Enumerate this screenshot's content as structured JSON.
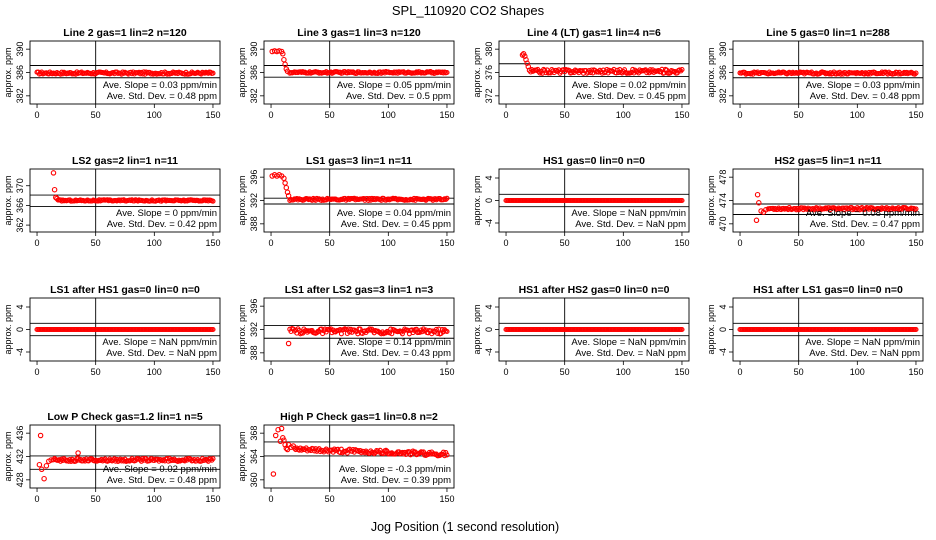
{
  "figure": {
    "title": "SPL_110920  CO2 Shapes",
    "xlabel": "Jog Position (1 second resolution)"
  },
  "colors": {
    "points": "#ff0000",
    "axes": "#000000",
    "background": "#ffffff"
  },
  "chart_data": [
    {
      "type": "scatter",
      "title": "Line 2 gas=1 lin=2 n=120",
      "ylabel": "approx. ppm",
      "yticks": [
        382,
        386,
        390
      ],
      "ylim": [
        380.6,
        391.4
      ],
      "xticks": [
        0,
        50,
        100,
        150
      ],
      "xlim": [
        -6,
        156
      ],
      "hlines": [
        387.2,
        385.1
      ],
      "slope": "Ave. Slope = 0.03 ppm/min",
      "stddev": "Ave. Std. Dev. = 0.48 ppm",
      "series": [
        {
          "segments": [
            {
              "x0": 0,
              "x1": 150,
              "y": 385.9,
              "jit": 0.2
            }
          ]
        }
      ]
    },
    {
      "type": "scatter",
      "title": "Line 3 gas=1 lin=3 n=120",
      "ylabel": "approx. ppm",
      "yticks": [
        382,
        386,
        390
      ],
      "ylim": [
        380.6,
        391.4
      ],
      "xticks": [
        0,
        50,
        100,
        150
      ],
      "xlim": [
        -6,
        156
      ],
      "hlines": [
        387.2,
        385.2
      ],
      "slope": "Ave. Slope = 0.05 ppm/min",
      "stddev": "Ave. Std. Dev. = 0.5 ppm",
      "series": [
        {
          "points": [
            [
              1,
              389.6
            ],
            [
              3,
              389.7
            ],
            [
              5,
              389.6
            ],
            [
              7,
              389.7
            ],
            [
              9,
              389.6
            ],
            [
              10,
              389.2
            ],
            [
              11,
              388.2
            ],
            [
              12,
              387.4
            ],
            [
              13,
              386.6
            ],
            [
              14,
              386.2
            ]
          ],
          "segments": [
            {
              "x0": 16,
              "x1": 150,
              "y": 386.0,
              "jit": 0.15
            }
          ]
        }
      ]
    },
    {
      "type": "scatter",
      "title": "Line 4 (LT) gas=1 lin=4 n=6",
      "ylabel": "approx. ppm",
      "yticks": [
        372,
        376,
        380
      ],
      "ylim": [
        370.6,
        381.4
      ],
      "xticks": [
        0,
        50,
        100,
        150
      ],
      "xlim": [
        -6,
        156
      ],
      "hlines": [
        377.5,
        375.3
      ],
      "slope": "Ave. Slope = 0.02 ppm/min",
      "stddev": "Ave. Std. Dev. = 0.45 ppm",
      "series": [
        {
          "points": [
            [
              14,
              379.0
            ],
            [
              15,
              379.2
            ],
            [
              16,
              378.8
            ],
            [
              17,
              378.2
            ],
            [
              18,
              377.6
            ],
            [
              19,
              377.0
            ],
            [
              20,
              376.4
            ]
          ],
          "segments": [
            {
              "x0": 21,
              "x1": 150,
              "y": 376.2,
              "jit": 0.35
            }
          ]
        }
      ]
    },
    {
      "type": "scatter",
      "title": "Line 5 gas=0 lin=1 n=288",
      "ylabel": "approx. ppm",
      "yticks": [
        382,
        386,
        390
      ],
      "ylim": [
        380.6,
        391.4
      ],
      "xticks": [
        0,
        50,
        100,
        150
      ],
      "xlim": [
        -6,
        156
      ],
      "hlines": [
        387.2,
        385.1
      ],
      "slope": "Ave. Slope = 0.03 ppm/min",
      "stddev": "Ave. Std. Dev. = 0.48 ppm",
      "series": [
        {
          "segments": [
            {
              "x0": 0,
              "x1": 150,
              "y": 385.9,
              "jit": 0.2
            }
          ]
        }
      ]
    },
    {
      "type": "scatter",
      "title": "LS2 gas=2 lin=1 n=11",
      "ylabel": "approx. ppm",
      "yticks": [
        362,
        366,
        370
      ],
      "ylim": [
        360.6,
        373.4
      ],
      "xticks": [
        0,
        50,
        100,
        150
      ],
      "xlim": [
        -6,
        156
      ],
      "hlines": [
        368.1,
        365.8
      ],
      "slope": "Ave. Slope = 0 ppm/min",
      "stddev": "Ave. Std. Dev. = 0.42 ppm",
      "series": [
        {
          "points": [
            [
              14,
              372.6
            ],
            [
              15,
              369.2
            ],
            [
              16,
              367.6
            ],
            [
              17,
              367.4
            ]
          ],
          "segments": [
            {
              "x0": 18,
              "x1": 150,
              "y": 367.0,
              "jit": 0.15
            }
          ]
        }
      ]
    },
    {
      "type": "scatter",
      "title": "LS1 gas=3 lin=1 n=11",
      "ylabel": "approx. ppm",
      "yticks": [
        388,
        392,
        396
      ],
      "ylim": [
        386.6,
        397.4
      ],
      "xticks": [
        0,
        50,
        100,
        150
      ],
      "xlim": [
        -6,
        156
      ],
      "hlines": [
        392.4,
        391.4
      ],
      "slope": "Ave. Slope = 0.04 ppm/min",
      "stddev": "Ave. Std. Dev. = 0.45 ppm",
      "series": [
        {
          "points": [
            [
              1,
              396.2
            ],
            [
              3,
              396.4
            ],
            [
              5,
              396.2
            ],
            [
              7,
              396.4
            ],
            [
              9,
              396.2
            ],
            [
              11,
              395.8
            ],
            [
              12,
              395.0
            ],
            [
              13,
              394.2
            ],
            [
              14,
              393.4
            ],
            [
              15,
              392.8
            ]
          ],
          "segments": [
            {
              "x0": 16,
              "x1": 150,
              "y": 392.2,
              "jit": 0.18
            }
          ]
        }
      ]
    },
    {
      "type": "scatter",
      "title": "HS1 gas=0 lin=0 n=0",
      "ylabel": "approx. ppm",
      "yticks": [
        -4,
        0,
        4
      ],
      "ylim": [
        -5.6,
        5.6
      ],
      "xticks": [
        0,
        50,
        100,
        150
      ],
      "xlim": [
        -6,
        156
      ],
      "hlines": [
        1.1,
        -1.1
      ],
      "slope": "Ave. Slope = NaN ppm/min",
      "stddev": "Ave. Std. Dev. = NaN ppm",
      "series": [
        {
          "segments": [
            {
              "x0": 0,
              "x1": 150,
              "y": 0,
              "jit": 0
            }
          ]
        }
      ]
    },
    {
      "type": "scatter",
      "title": "HS2 gas=5 lin=1 n=11",
      "ylabel": "approx. ppm",
      "yticks": [
        470,
        474,
        478
      ],
      "ylim": [
        468.6,
        479.4
      ],
      "xticks": [
        0,
        50,
        100,
        150
      ],
      "xlim": [
        -6,
        156
      ],
      "hlines": [
        473.4,
        471.6
      ],
      "slope": "Ave. Slope = 0.08 ppm/min",
      "stddev": "Ave. Std. Dev. = 0.47 ppm",
      "series": [
        {
          "points": [
            [
              14,
              470.6
            ],
            [
              15,
              475.0
            ],
            [
              16,
              473.6
            ],
            [
              18,
              472.2
            ],
            [
              20,
              472.0
            ],
            [
              22,
              472.4
            ]
          ],
          "segments": [
            {
              "x0": 24,
              "x1": 150,
              "y": 472.6,
              "jit": 0.2
            }
          ]
        }
      ]
    },
    {
      "type": "scatter",
      "title": "LS1 after HS1 gas=0 lin=0 n=0",
      "ylabel": "approx. ppm",
      "yticks": [
        -4,
        0,
        4
      ],
      "ylim": [
        -5.6,
        5.6
      ],
      "xticks": [
        0,
        50,
        100,
        150
      ],
      "xlim": [
        -6,
        156
      ],
      "hlines": [
        1.1,
        -1.1
      ],
      "slope": "Ave. Slope = NaN ppm/min",
      "stddev": "Ave. Std. Dev. = NaN ppm",
      "series": [
        {
          "segments": [
            {
              "x0": 0,
              "x1": 150,
              "y": 0,
              "jit": 0
            }
          ]
        }
      ]
    },
    {
      "type": "scatter",
      "title": "LS1 after LS2 gas=3 lin=1 n=3",
      "ylabel": "approx. ppm",
      "yticks": [
        388,
        392,
        396
      ],
      "ylim": [
        386.6,
        397.4
      ],
      "xticks": [
        0,
        50,
        100,
        150
      ],
      "xlim": [
        -6,
        156
      ],
      "hlines": [
        392.7,
        390.5
      ],
      "slope": "Ave. Slope = 0.14 ppm/min",
      "stddev": "Ave. Std. Dev. = 0.43 ppm",
      "series": [
        {
          "points": [
            [
              15,
              389.6
            ]
          ],
          "segments": [
            {
              "x0": 16,
              "x1": 150,
              "y": 391.7,
              "jit": 0.45
            }
          ]
        }
      ]
    },
    {
      "type": "scatter",
      "title": "HS1 after HS2 gas=0 lin=0 n=0",
      "ylabel": "approx. ppm",
      "yticks": [
        -4,
        0,
        4
      ],
      "ylim": [
        -5.6,
        5.6
      ],
      "xticks": [
        0,
        50,
        100,
        150
      ],
      "xlim": [
        -6,
        156
      ],
      "hlines": [
        1.1,
        -1.1
      ],
      "slope": "Ave. Slope = NaN ppm/min",
      "stddev": "Ave. Std. Dev. = NaN ppm",
      "series": [
        {
          "segments": [
            {
              "x0": 0,
              "x1": 150,
              "y": 0,
              "jit": 0
            }
          ]
        }
      ]
    },
    {
      "type": "scatter",
      "title": "HS1 after LS1 gas=0 lin=0 n=0",
      "ylabel": "approx. ppm",
      "yticks": [
        -4,
        0,
        4
      ],
      "ylim": [
        -5.6,
        5.6
      ],
      "xticks": [
        0,
        50,
        100,
        150
      ],
      "xlim": [
        -6,
        156
      ],
      "hlines": [
        1.1,
        -1.1
      ],
      "slope": "Ave. Slope = NaN ppm/min",
      "stddev": "Ave. Std. Dev. = NaN ppm",
      "series": [
        {
          "segments": [
            {
              "x0": 0,
              "x1": 150,
              "y": 0,
              "jit": 0
            }
          ]
        }
      ]
    },
    {
      "type": "scatter",
      "title": "Low P Check gas=1.2 lin=1 n=5",
      "ylabel": "approx. ppm",
      "yticks": [
        428,
        432,
        436
      ],
      "ylim": [
        426.6,
        437.4
      ],
      "xticks": [
        0,
        50,
        100,
        150
      ],
      "xlim": [
        -6,
        156
      ],
      "hlines": [
        432.1,
        429.8
      ],
      "slope": "Ave. Slope = 0.02 ppm/min",
      "stddev": "Ave. Std. Dev. = 0.48 ppm",
      "series": [
        {
          "points": [
            [
              2,
              430.6
            ],
            [
              3,
              435.6
            ],
            [
              4,
              429.8
            ],
            [
              6,
              428.2
            ],
            [
              8,
              430.4
            ],
            [
              10,
              431.2
            ],
            [
              12,
              431.4
            ],
            [
              35,
              432.6
            ]
          ],
          "segments": [
            {
              "x0": 14,
              "x1": 150,
              "y": 431.4,
              "jit": 0.25
            }
          ]
        }
      ]
    },
    {
      "type": "scatter",
      "title": "High P Check gas=1 lin=0.8 n=2",
      "ylabel": "approx. ppm",
      "yticks": [
        360,
        364,
        368
      ],
      "ylim": [
        358.6,
        369.4
      ],
      "xticks": [
        0,
        50,
        100,
        150
      ],
      "xlim": [
        -6,
        156
      ],
      "hlines": [
        366.5,
        364.1
      ],
      "slope": "Ave. Slope = -0.3 ppm/min",
      "stddev": "Ave. Std. Dev. = 0.39 ppm",
      "series": [
        {
          "points": [
            [
              2,
              361.0
            ],
            [
              4,
              367.6
            ],
            [
              6,
              368.6
            ],
            [
              8,
              366.6
            ],
            [
              9,
              368.8
            ],
            [
              10,
              367.2
            ],
            [
              11,
              366.8
            ],
            [
              12,
              366.0
            ],
            [
              13,
              365.4
            ],
            [
              14,
              365.2
            ],
            [
              15,
              366.0
            ],
            [
              17,
              365.6
            ],
            [
              19,
              365.8
            ]
          ],
          "segments": [
            {
              "x0": 20,
              "x1": 150,
              "y": 365.2,
              "jit": 0.35,
              "drift": -0.8
            }
          ]
        }
      ]
    }
  ]
}
